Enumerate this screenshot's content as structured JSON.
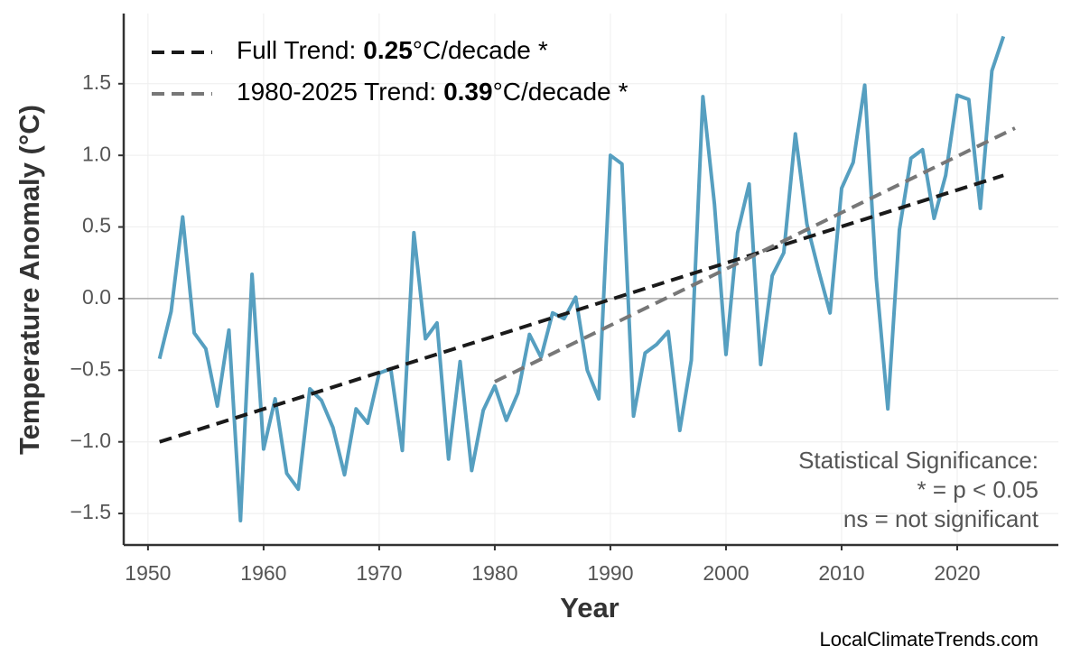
{
  "chart_data": {
    "type": "line",
    "y_label": "Temperature Anomaly (°C)",
    "x_label": "Year",
    "x": [
      1951,
      1952,
      1953,
      1954,
      1955,
      1956,
      1957,
      1958,
      1959,
      1960,
      1961,
      1962,
      1963,
      1964,
      1965,
      1966,
      1967,
      1968,
      1969,
      1970,
      1971,
      1972,
      1973,
      1974,
      1975,
      1976,
      1977,
      1978,
      1979,
      1980,
      1981,
      1982,
      1983,
      1984,
      1985,
      1986,
      1987,
      1988,
      1989,
      1990,
      1991,
      1992,
      1993,
      1994,
      1995,
      1996,
      1997,
      1998,
      1999,
      2000,
      2001,
      2002,
      2003,
      2004,
      2005,
      2006,
      2007,
      2008,
      2009,
      2010,
      2011,
      2012,
      2013,
      2014,
      2015,
      2016,
      2017,
      2018,
      2019,
      2020,
      2021,
      2022,
      2023,
      2024
    ],
    "values": [
      -0.42,
      -0.09,
      0.57,
      -0.24,
      -0.35,
      -0.75,
      -0.22,
      -1.55,
      0.17,
      -1.05,
      -0.7,
      -1.22,
      -1.33,
      -0.63,
      -0.71,
      -0.9,
      -1.23,
      -0.77,
      -0.87,
      -0.52,
      -0.49,
      -1.06,
      0.46,
      -0.28,
      -0.17,
      -1.12,
      -0.44,
      -1.2,
      -0.78,
      -0.61,
      -0.85,
      -0.66,
      -0.25,
      -0.41,
      -0.1,
      -0.14,
      0.01,
      -0.5,
      -0.7,
      1.0,
      0.94,
      -0.82,
      -0.38,
      -0.32,
      -0.23,
      -0.92,
      -0.43,
      1.41,
      0.66,
      -0.39,
      0.46,
      0.8,
      -0.46,
      0.16,
      0.32,
      1.15,
      0.52,
      0.2,
      -0.1,
      0.77,
      0.95,
      1.49,
      0.14,
      -0.77,
      0.48,
      0.98,
      1.04,
      0.56,
      0.86,
      1.42,
      1.39,
      0.63,
      1.59,
      1.83
    ],
    "color": "#569fc0",
    "trends": [
      {
        "name": "Full Trend:",
        "rate": 0.25,
        "unit": "°C/decade",
        "significance": "*",
        "color": "#1a1a1a",
        "x": [
          1951,
          2024
        ],
        "values": [
          -1.0,
          0.86
        ]
      },
      {
        "name": "1980-2025 Trend:",
        "rate": 0.39,
        "unit": "°C/decade",
        "significance": "*",
        "color": "#777777",
        "x": [
          1980,
          2025
        ],
        "values": [
          -0.58,
          1.19
        ]
      }
    ],
    "xlim": [
      1947.9,
      2028.75
    ],
    "ylim": [
      -1.72,
      1.99
    ],
    "xticks": [
      1950,
      1960,
      1970,
      1980,
      1990,
      2000,
      2010,
      2020
    ],
    "yticks": [
      {
        "value": -1.5,
        "label": "−1.5"
      },
      {
        "value": -1.0,
        "label": "−1.0"
      },
      {
        "value": -0.5,
        "label": "−0.5"
      },
      {
        "value": 0,
        "label": "0.0"
      },
      0.5,
      {
        "value": 1.0,
        "label": "1.0"
      },
      1.5
    ],
    "grid": true,
    "legend": "upper left",
    "annotation": [
      "Statistical Significance:",
      "* = p < 0.05",
      "ns = not significant"
    ],
    "source": "LocalClimateTrends.com"
  }
}
